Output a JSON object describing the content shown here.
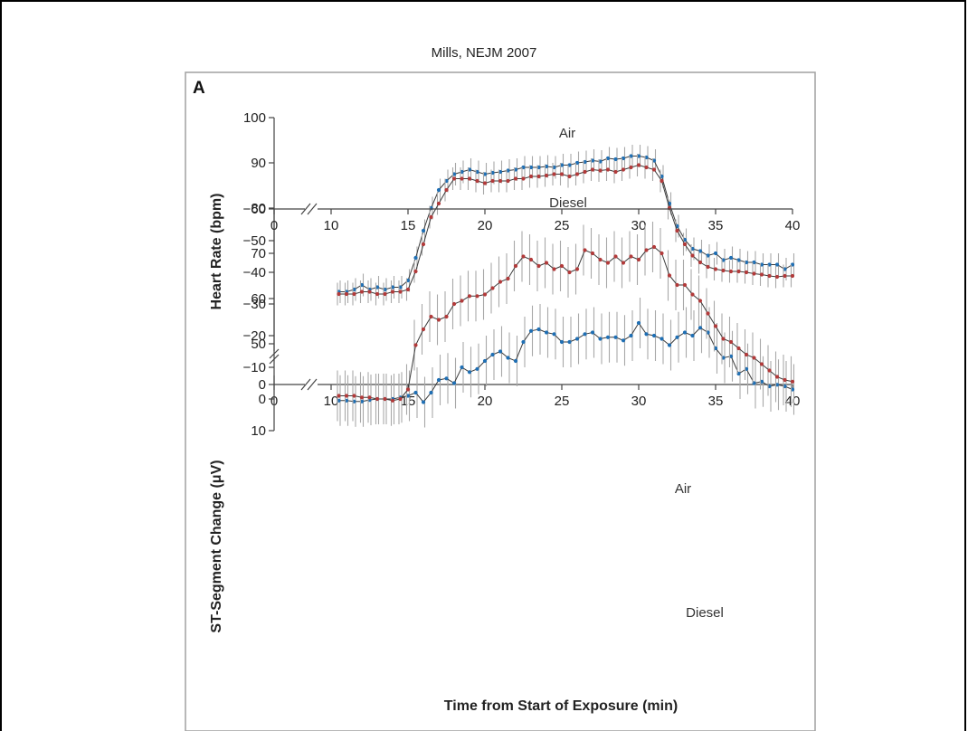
{
  "citation": "Mills, NEJM 2007",
  "panel_letter": "A",
  "chart_data": [
    {
      "type": "line",
      "ylabel": "Heart Rate (bpm)",
      "xlabel": "",
      "xlim": [
        0,
        40
      ],
      "ylim": [
        0,
        100
      ],
      "axis_break": "y axis broken between 0 and 50; x axis broken between 0 and 10",
      "x_ticks": [
        "0",
        "10",
        "15",
        "20",
        "25",
        "30",
        "35",
        "40"
      ],
      "y_ticks": [
        "0",
        "50",
        "60",
        "70",
        "80",
        "90",
        "100"
      ],
      "series": [
        {
          "name": "Air",
          "color": "#1f6fb4",
          "x": [
            10.5,
            11,
            11.5,
            12,
            12.5,
            13,
            13.5,
            14,
            14.5,
            15,
            15.5,
            16,
            16.5,
            17,
            17.5,
            18,
            18.5,
            19,
            19.5,
            20,
            20.5,
            21,
            21.5,
            22,
            22.5,
            23,
            23.5,
            24,
            24.5,
            25,
            25.5,
            26,
            26.5,
            27,
            27.5,
            28,
            28.5,
            29,
            29.5,
            30,
            30.5,
            31,
            31.5,
            32,
            32.5,
            33,
            33.5,
            34,
            34.5,
            35,
            35.5,
            36,
            36.5,
            37,
            37.5,
            38,
            38.5,
            39,
            39.5,
            40
          ],
          "values": [
            61.5,
            61.5,
            62,
            63,
            62,
            62.5,
            62,
            62.5,
            62.5,
            64,
            69,
            75,
            80,
            84,
            86,
            87.5,
            88,
            88.5,
            88,
            87.5,
            87.8,
            88,
            88.3,
            88.5,
            89,
            89,
            89,
            89.2,
            89,
            89.5,
            89.5,
            90,
            90.2,
            90.5,
            90.3,
            91,
            90.8,
            91,
            91.5,
            91.5,
            91.2,
            90.5,
            87,
            81,
            76,
            73,
            71,
            70.5,
            69.5,
            70,
            68.5,
            69,
            68.5,
            68,
            68,
            67.5,
            67.5,
            67.5,
            66.5,
            67.5
          ],
          "error": 2.5
        },
        {
          "name": "Diesel",
          "color": "#b23a3a",
          "x": [
            10.5,
            11,
            11.5,
            12,
            12.5,
            13,
            13.5,
            14,
            14.5,
            15,
            15.5,
            16,
            16.5,
            17,
            17.5,
            18,
            18.5,
            19,
            19.5,
            20,
            20.5,
            21,
            21.5,
            22,
            22.5,
            23,
            23.5,
            24,
            24.5,
            25,
            25.5,
            26,
            26.5,
            27,
            27.5,
            28,
            28.5,
            29,
            29.5,
            30,
            30.5,
            31,
            31.5,
            32,
            32.5,
            33,
            33.5,
            34,
            34.5,
            35,
            35.5,
            36,
            36.5,
            37,
            37.5,
            38,
            38.5,
            39,
            39.5,
            40
          ],
          "values": [
            61,
            61,
            61,
            61.5,
            61.5,
            61,
            61,
            61.5,
            61.5,
            62,
            66,
            72,
            78,
            81,
            84,
            86.5,
            86.5,
            86.5,
            86,
            85.5,
            86,
            86,
            86,
            86.5,
            86.5,
            87,
            87,
            87.2,
            87.5,
            87.5,
            87,
            87.5,
            88,
            88.5,
            88.3,
            88.5,
            88,
            88.5,
            89,
            89.5,
            89,
            88.5,
            86,
            80,
            75,
            72,
            69.5,
            68,
            67,
            66.5,
            66.2,
            66,
            66,
            65.8,
            65.5,
            65.3,
            65,
            64.8,
            65,
            65
          ],
          "error": 2.5
        }
      ]
    },
    {
      "type": "line",
      "ylabel": "ST-Segment Change (μV)",
      "xlabel": "Time from Start of Exposure (min)",
      "xlim": [
        0,
        40
      ],
      "ylim": [
        -60,
        10
      ],
      "axis_break": "x axis broken between 0 and 10",
      "x_ticks": [
        "0",
        "10",
        "15",
        "20",
        "25",
        "30",
        "35",
        "40"
      ],
      "y_ticks": [
        "10",
        "0",
        "-10",
        "-20",
        "-30",
        "-40",
        "-50",
        "-60"
      ],
      "series": [
        {
          "name": "Air",
          "color": "#1f6fb4",
          "x": [
            10.5,
            11,
            11.5,
            12,
            12.5,
            13,
            13.5,
            14,
            14.5,
            15,
            15.5,
            16,
            16.5,
            17,
            17.5,
            18,
            18.5,
            19,
            19.5,
            20,
            20.5,
            21,
            21.5,
            22,
            22.5,
            23,
            23.5,
            24,
            24.5,
            25,
            25.5,
            26,
            26.5,
            27,
            27.5,
            28,
            28.5,
            29,
            29.5,
            30,
            30.5,
            31,
            31.5,
            32,
            32.5,
            33,
            33.5,
            34,
            34.5,
            35,
            35.5,
            36,
            36.5,
            37,
            37.5,
            38,
            38.5,
            39,
            39.5,
            40
          ],
          "values": [
            0.5,
            0.5,
            0.8,
            0.8,
            0.3,
            0,
            0,
            0,
            -0.5,
            -1,
            -2,
            1,
            -2,
            -6,
            -6.5,
            -5,
            -10,
            -8.5,
            -9.5,
            -12,
            -14,
            -15,
            -13,
            -12,
            -18,
            -21.5,
            -22,
            -21,
            -20.5,
            -18,
            -18,
            -19,
            -20.5,
            -21,
            -19,
            -19.5,
            -19.5,
            -18.5,
            -20,
            -24,
            -20.5,
            -20,
            -19,
            -17,
            -19.5,
            -21,
            -20,
            -22.5,
            -21,
            -16,
            -13,
            -13.5,
            -8,
            -9.5,
            -5,
            -5.5,
            -4,
            -4.5,
            -4,
            -3
          ],
          "error": 8
        },
        {
          "name": "Diesel",
          "color": "#b23a3a",
          "x": [
            10.5,
            11,
            11.5,
            12,
            12.5,
            13,
            13.5,
            14,
            14.5,
            15,
            15.5,
            16,
            16.5,
            17,
            17.5,
            18,
            18.5,
            19,
            19.5,
            20,
            20.5,
            21,
            21.5,
            22,
            22.5,
            23,
            23.5,
            24,
            24.5,
            25,
            25.5,
            26,
            26.5,
            27,
            27.5,
            28,
            28.5,
            29,
            29.5,
            30,
            30.5,
            31,
            31.5,
            32,
            32.5,
            33,
            33.5,
            34,
            34.5,
            35,
            35.5,
            36,
            36.5,
            37,
            37.5,
            38,
            38.5,
            39,
            39.5,
            40
          ],
          "values": [
            -1,
            -1,
            -1,
            -0.5,
            -0.5,
            0,
            0,
            0.5,
            0,
            -3,
            -17,
            -22,
            -26,
            -25,
            -26,
            -30,
            -31,
            -32.5,
            -32.5,
            -33,
            -35,
            -37,
            -38,
            -42,
            -45,
            -44,
            -42,
            -43,
            -41,
            -42,
            -40,
            -41,
            -47,
            -46,
            -44,
            -43,
            -45,
            -43,
            -45,
            -44,
            -47,
            -48,
            -46,
            -39,
            -36,
            -36,
            -33,
            -31,
            -27,
            -23,
            -19,
            -18,
            -16,
            -14,
            -13,
            -11,
            -9,
            -7,
            -6,
            -5.5
          ],
          "error": 8
        }
      ]
    }
  ]
}
